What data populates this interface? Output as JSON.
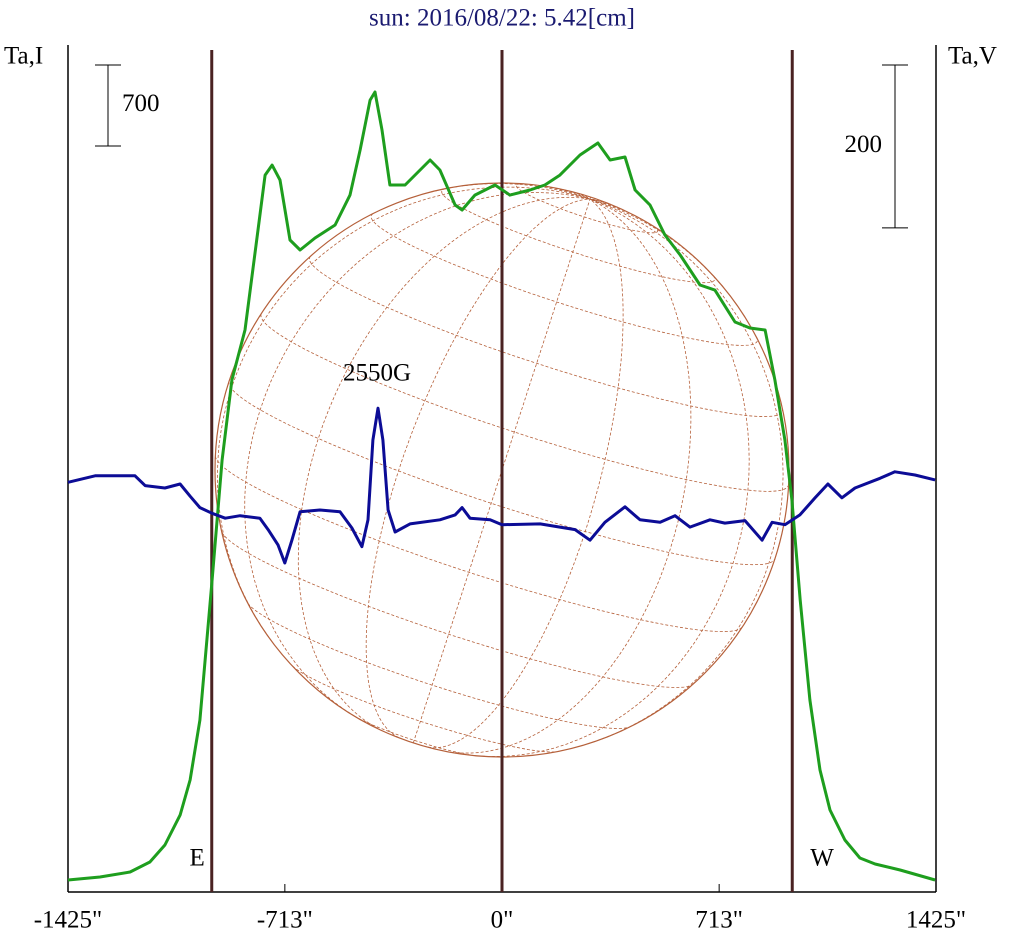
{
  "chart_data": {
    "type": "line",
    "title": "sun: 2016/08/22: 5.42[cm]",
    "y_label": "Ta,I",
    "y2_label": "Ta,V",
    "annotation": "2550G",
    "xlim": [
      -1425,
      1425
    ],
    "xticks": [
      {
        "value": -1425,
        "label": "-1425\""
      },
      {
        "value": -713,
        "label": "-713\""
      },
      {
        "value": 0,
        "label": "0\""
      },
      {
        "value": 713,
        "label": "713\""
      },
      {
        "value": 1425,
        "label": "1425\""
      }
    ],
    "ylim": [
      0,
      7320
    ],
    "y2lim": [
      -520,
      520
    ],
    "scale_bars": [
      {
        "axis": "y",
        "value": 700
      },
      {
        "axis": "y2",
        "value": 200
      }
    ],
    "markers": [
      {
        "x": -953,
        "label": "E"
      },
      {
        "x": 0
      },
      {
        "x": 953,
        "label": "W"
      }
    ],
    "marker_color": "#4a2222",
    "disk_color": "#b5603a",
    "series": [
      {
        "name": "I",
        "color": "#1e9e1e",
        "axis": "y",
        "x": [
          -1425,
          -1320,
          -1221,
          -1156,
          -1107,
          -1057,
          -1024,
          -992,
          -952,
          -919,
          -887,
          -844,
          -801,
          -778,
          -755,
          -729,
          -696,
          -663,
          -614,
          -548,
          -499,
          -466,
          -433,
          -417,
          -394,
          -368,
          -318,
          -269,
          -236,
          -204,
          -154,
          -131,
          -89,
          -23,
          26,
          92,
          141,
          190,
          256,
          315,
          355,
          404,
          437,
          486,
          535,
          585,
          650,
          699,
          765,
          814,
          864,
          896,
          929,
          952,
          979,
          1011,
          1044,
          1077,
          1126,
          1175,
          1225,
          1307,
          1422
        ],
        "values": [
          104,
          130,
          173,
          259,
          406,
          665,
          968,
          1486,
          2696,
          3733,
          4425,
          4857,
          5721,
          6196,
          6282,
          6153,
          5635,
          5548,
          5652,
          5764,
          6023,
          6412,
          6844,
          6914,
          6585,
          6110,
          6110,
          6240,
          6326,
          6240,
          5937,
          5894,
          6023,
          6110,
          6023,
          6067,
          6110,
          6196,
          6369,
          6473,
          6326,
          6352,
          6067,
          5937,
          5678,
          5505,
          5246,
          5202,
          4926,
          4874,
          4857,
          4425,
          3906,
          3388,
          2523,
          1659,
          1054,
          709,
          449,
          294,
          242,
          190,
          104
        ]
      },
      {
        "name": "V",
        "color": "#0c0c96",
        "axis": "y2",
        "x": [
          -1425,
          -1336,
          -1205,
          -1172,
          -1107,
          -1057,
          -1024,
          -992,
          -952,
          -909,
          -860,
          -795,
          -768,
          -735,
          -713,
          -690,
          -663,
          -598,
          -532,
          -493,
          -460,
          -440,
          -424,
          -407,
          -391,
          -374,
          -351,
          -302,
          -204,
          -154,
          -131,
          -105,
          -39,
          0,
          125,
          240,
          289,
          338,
          404,
          453,
          519,
          568,
          617,
          683,
          732,
          798,
          854,
          887,
          929,
          978,
          1028,
          1070,
          1116,
          1159,
          1241,
          1290,
          1356,
          1422
        ],
        "values": [
          -17,
          -9,
          -9,
          -21,
          -24,
          -19,
          -34,
          -48,
          -55,
          -61,
          -58,
          -61,
          -75,
          -94,
          -116,
          -88,
          -53,
          -51,
          -53,
          -73,
          -96,
          -63,
          35,
          74,
          35,
          -51,
          -78,
          -68,
          -63,
          -57,
          -48,
          -61,
          -63,
          -69,
          -68,
          -75,
          -88,
          -66,
          -47,
          -63,
          -66,
          -58,
          -72,
          -63,
          -67,
          -64,
          -88,
          -66,
          -69,
          -57,
          -36,
          -19,
          -36,
          -24,
          -12,
          -4,
          -8,
          -14
        ]
      }
    ]
  }
}
